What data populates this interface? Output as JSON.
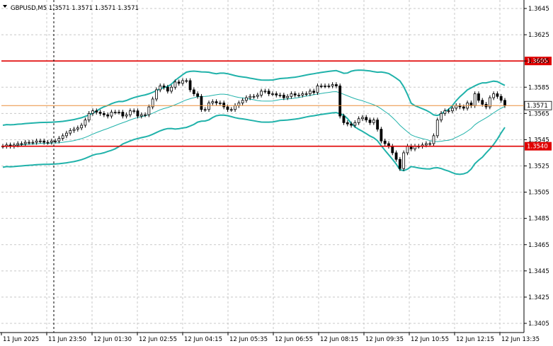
{
  "chart_data": {
    "type": "candlestick",
    "symbol_line": "GBPUSD,M5  1.3571 1.3571 1.3571 1.3571",
    "y_ticks": [
      "1.3645",
      "1.3625",
      "1.3605",
      "1.3585",
      "1.3565",
      "1.3545",
      "1.3525",
      "1.3505",
      "1.3485",
      "1.3465",
      "1.3445",
      "1.3425",
      "1.3405"
    ],
    "ylim": [
      1.34,
      1.365
    ],
    "x_ticks": [
      "11 Jun 2025",
      "11 Jun 23:50",
      "12 Jun 01:30",
      "12 Jun 02:55",
      "12 Jun 04:15",
      "12 Jun 05:35",
      "12 Jun 06:55",
      "12 Jun 08:15",
      "12 Jun 09:35",
      "12 Jun 10:55",
      "12 Jun 12:15",
      "12 Jun 13:35"
    ],
    "grid": true,
    "levels": [
      {
        "value": 1.3605,
        "label": "1.3605",
        "color": "#e00000"
      },
      {
        "value": 1.354,
        "label": "1.3540",
        "color": "#e00000"
      }
    ],
    "current_price": {
      "value": 1.3571,
      "label": "1.3571",
      "color": "#e98e3a"
    },
    "close_series": [
      1.354,
      1.3541,
      1.354,
      1.3541,
      1.3542,
      1.3542,
      1.3543,
      1.3543,
      1.3543,
      1.3544,
      1.3544,
      1.3543,
      1.3543,
      1.3544,
      1.3544,
      1.3546,
      1.3548,
      1.355,
      1.3552,
      1.3553,
      1.3554,
      1.3556,
      1.356,
      1.3565,
      1.3567,
      1.3566,
      1.3565,
      1.3564,
      1.3563,
      1.3566,
      1.3566,
      1.3566,
      1.3563,
      1.3564,
      1.3567,
      1.3567,
      1.3563,
      1.3564,
      1.3564,
      1.357,
      1.3576,
      1.3583,
      1.3586,
      1.3585,
      1.3582,
      1.3585,
      1.3589,
      1.3588,
      1.359,
      1.359,
      1.3583,
      1.358,
      1.3578,
      1.3568,
      1.3568,
      1.3573,
      1.3574,
      1.3573,
      1.3573,
      1.357,
      1.3568,
      1.3568,
      1.3571,
      1.3573,
      1.3575,
      1.3577,
      1.3578,
      1.3578,
      1.3579,
      1.3582,
      1.3582,
      1.358,
      1.358,
      1.3579,
      1.3579,
      1.3577,
      1.3578,
      1.358,
      1.3579,
      1.3579,
      1.358,
      1.358,
      1.3582,
      1.3581,
      1.3586,
      1.3586,
      1.3586,
      1.3586,
      1.3587,
      1.3586,
      1.3563,
      1.3558,
      1.3557,
      1.3556,
      1.3558,
      1.3561,
      1.3562,
      1.356,
      1.3558,
      1.356,
      1.3553,
      1.3544,
      1.3542,
      1.354,
      1.3535,
      1.353,
      1.3523,
      1.3535,
      1.354,
      1.3538,
      1.354,
      1.354,
      1.3541,
      1.3542,
      1.3542,
      1.3548,
      1.356,
      1.3565,
      1.3567,
      1.3567,
      1.3569,
      1.3571,
      1.357,
      1.3569,
      1.3573,
      1.3571,
      1.358,
      1.3575,
      1.3572,
      1.357,
      1.3577,
      1.358,
      1.3578,
      1.3575,
      1.3571
    ]
  }
}
